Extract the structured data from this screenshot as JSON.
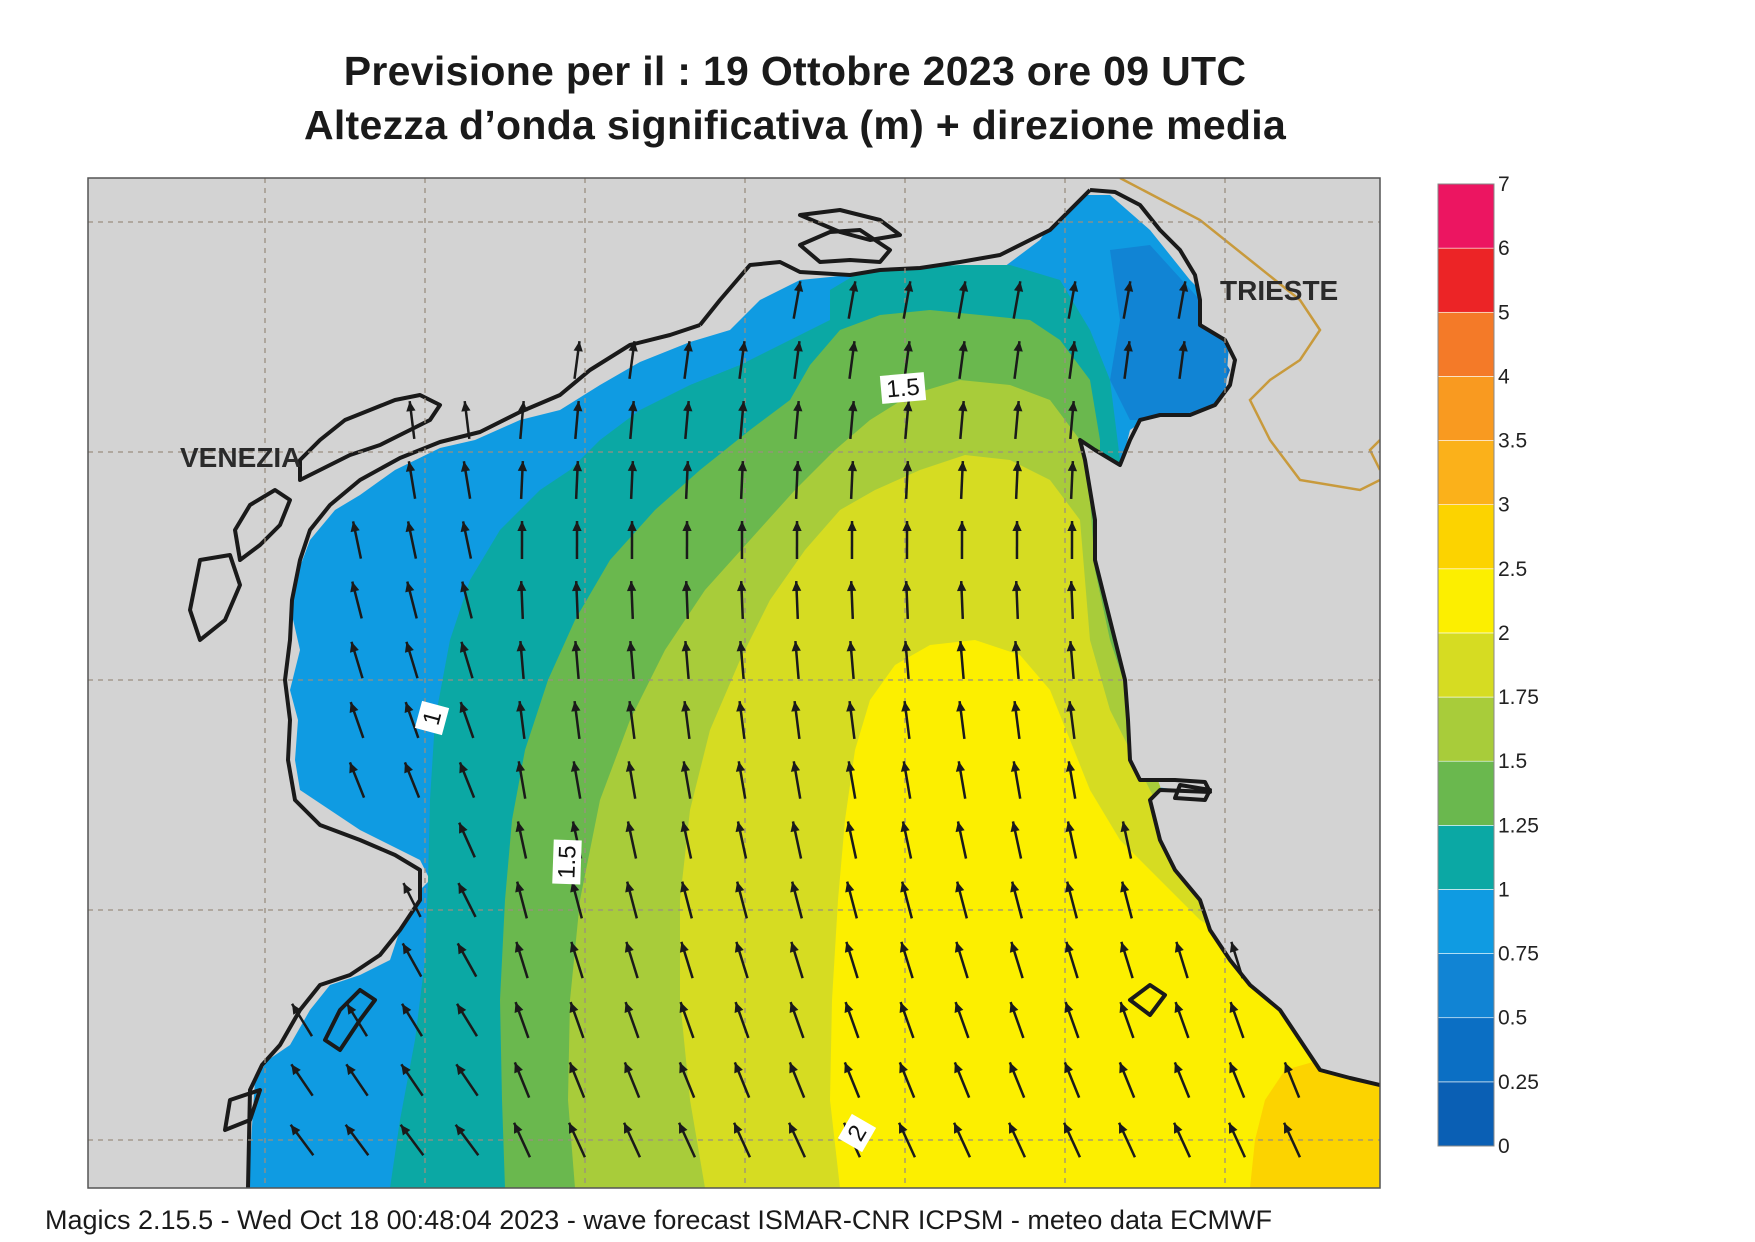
{
  "title": {
    "line1": "Previsione per il  :  19  Ottobre  2023   ore 09 UTC",
    "line2": "Altezza d’onda significativa (m) + direzione media"
  },
  "map": {
    "cities": [
      {
        "name": "VENEZIA"
      },
      {
        "name": "TRIESTE"
      }
    ],
    "contour_labels": [
      "1",
      "1.5",
      "1.5",
      "2"
    ],
    "dominant_wave_direction": "NNW"
  },
  "legend": {
    "bins": [
      {
        "min": "0",
        "max": "0.25",
        "color": "#0a5fb4"
      },
      {
        "min": "0.25",
        "max": "0.5",
        "color": "#0b6fc4"
      },
      {
        "min": "0.5",
        "max": "0.75",
        "color": "#1184d4"
      },
      {
        "min": "0.75",
        "max": "1",
        "color": "#0f9be2"
      },
      {
        "min": "1",
        "max": "1.25",
        "color": "#0ba8a4"
      },
      {
        "min": "1.25",
        "max": "1.5",
        "color": "#6ab84e"
      },
      {
        "min": "1.5",
        "max": "1.75",
        "color": "#a8cc3a"
      },
      {
        "min": "1.75",
        "max": "2",
        "color": "#d6dc22"
      },
      {
        "min": "2",
        "max": "2.5",
        "color": "#fcef00"
      },
      {
        "min": "2.5",
        "max": "3",
        "color": "#fcd300"
      },
      {
        "min": "3",
        "max": "3.5",
        "color": "#fbb11a"
      },
      {
        "min": "3.5",
        "max": "4",
        "color": "#f99a20"
      },
      {
        "min": "4",
        "max": "5",
        "color": "#f47a28"
      },
      {
        "min": "5",
        "max": "6",
        "color": "#ec2426"
      },
      {
        "min": "6",
        "max": "7",
        "color": "#ec1561"
      }
    ],
    "tick_labels": [
      "0",
      "0.25",
      "0.5",
      "0.75",
      "1",
      "1.25",
      "1.5",
      "1.75",
      "2",
      "2.5",
      "3",
      "3.5",
      "4",
      "5",
      "6",
      "7"
    ]
  },
  "colors": {
    "land": "#d3d3d3",
    "coast": "#1a1a1a",
    "border": "#c89a3c",
    "grid": "#9a8f80",
    "arrow": "#1a1a1a"
  },
  "footer": "Magics 2.15.5 - Wed Oct 18 00:48:04 2023 - wave forecast  ISMAR-CNR  ICPSM - meteo data   ECMWF"
}
